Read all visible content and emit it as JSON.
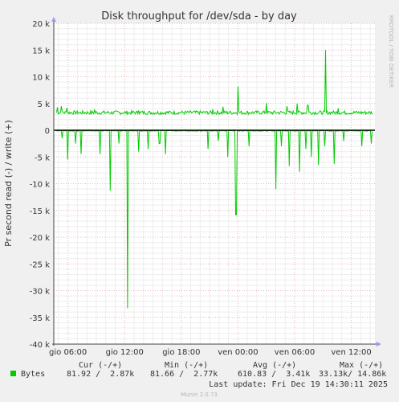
{
  "chart_data": {
    "type": "line",
    "title": "Disk throughput for /dev/sda - by day",
    "ylabel": "Pr second read (-) / write (+)",
    "xlabel": "",
    "side_label": "RRDTOOL / TOBI OETIKER",
    "ylim": [
      -40000,
      20000
    ],
    "y_ticks": [
      20000,
      15000,
      10000,
      5000,
      0,
      -5000,
      -10000,
      -15000,
      -20000,
      -25000,
      -30000,
      -35000,
      -40000
    ],
    "y_tick_labels": [
      "20 k",
      "15 k",
      "10 k",
      "5 k",
      "0",
      "-5 k",
      "-10 k",
      "-15 k",
      "-20 k",
      "-25 k",
      "-30 k",
      "-35 k",
      "-40 k"
    ],
    "x_ticks": [
      "gio 06:00",
      "gio 12:00",
      "gio 18:00",
      "ven 00:00",
      "ven 06:00",
      "ven 12:00"
    ],
    "x_range_hours": [
      4.5,
      38.5
    ],
    "x_tick_hours": [
      6,
      12,
      18,
      24,
      30,
      36
    ],
    "grid": true,
    "series": [
      {
        "name": "Bytes",
        "color": "#00cc00",
        "write_baseline": 3300,
        "write_spikes": [
          {
            "hour": 4.9,
            "value": 4300
          },
          {
            "hour": 5.3,
            "value": 4500
          },
          {
            "hour": 5.9,
            "value": 4200
          },
          {
            "hour": 8.8,
            "value": 3900
          },
          {
            "hour": 13.5,
            "value": 3700
          },
          {
            "hour": 21.3,
            "value": 3900
          },
          {
            "hour": 22.4,
            "value": 4400
          },
          {
            "hour": 24.0,
            "value": 8200
          },
          {
            "hour": 27.0,
            "value": 5100
          },
          {
            "hour": 29.2,
            "value": 4500
          },
          {
            "hour": 30.3,
            "value": 5000
          },
          {
            "hour": 31.4,
            "value": 4700
          },
          {
            "hour": 33.3,
            "value": 15000
          },
          {
            "hour": 34.6,
            "value": 4100
          }
        ],
        "read_spikes": [
          {
            "hour": 5.4,
            "value": -1500
          },
          {
            "hour": 6.0,
            "value": -5500
          },
          {
            "hour": 6.8,
            "value": -2500
          },
          {
            "hour": 7.4,
            "value": -4500
          },
          {
            "hour": 9.4,
            "value": -4500
          },
          {
            "hour": 10.5,
            "value": -11300
          },
          {
            "hour": 11.4,
            "value": -2500
          },
          {
            "hour": 12.3,
            "value": -33300
          },
          {
            "hour": 13.5,
            "value": -4000
          },
          {
            "hour": 14.5,
            "value": -3500
          },
          {
            "hour": 15.7,
            "value": -2500
          },
          {
            "hour": 16.3,
            "value": -4500
          },
          {
            "hour": 20.8,
            "value": -3500
          },
          {
            "hour": 21.9,
            "value": -2000
          },
          {
            "hour": 22.9,
            "value": -5000
          },
          {
            "hour": 23.8,
            "value": -15800
          },
          {
            "hour": 25.2,
            "value": -3000
          },
          {
            "hour": 28.0,
            "value": -11000
          },
          {
            "hour": 28.6,
            "value": -3000
          },
          {
            "hour": 29.4,
            "value": -6700
          },
          {
            "hour": 30.5,
            "value": -7800
          },
          {
            "hour": 31.2,
            "value": -3500
          },
          {
            "hour": 31.8,
            "value": -5000
          },
          {
            "hour": 32.5,
            "value": -6500
          },
          {
            "hour": 33.2,
            "value": -3000
          },
          {
            "hour": 34.2,
            "value": -6300
          },
          {
            "hour": 35.2,
            "value": -2000
          },
          {
            "hour": 37.1,
            "value": -3000
          },
          {
            "hour": 38.1,
            "value": -2500
          }
        ]
      }
    ]
  },
  "legend": {
    "headers": [
      "Cur (-/+)",
      "Min (-/+)",
      "Avg (-/+)",
      "Max (-/+)"
    ],
    "rows": [
      {
        "name": "Bytes",
        "color": "#00cc00",
        "cur": "81.92 /  2.87k",
        "min": "81.66 /  2.77k",
        "avg": "610.83 /  3.41k",
        "max": "33.13k/ 14.86k"
      }
    ],
    "last_update": "Last update: Fri Dec 19 14:30:11 2025",
    "version": "Munin 2.0.73"
  }
}
